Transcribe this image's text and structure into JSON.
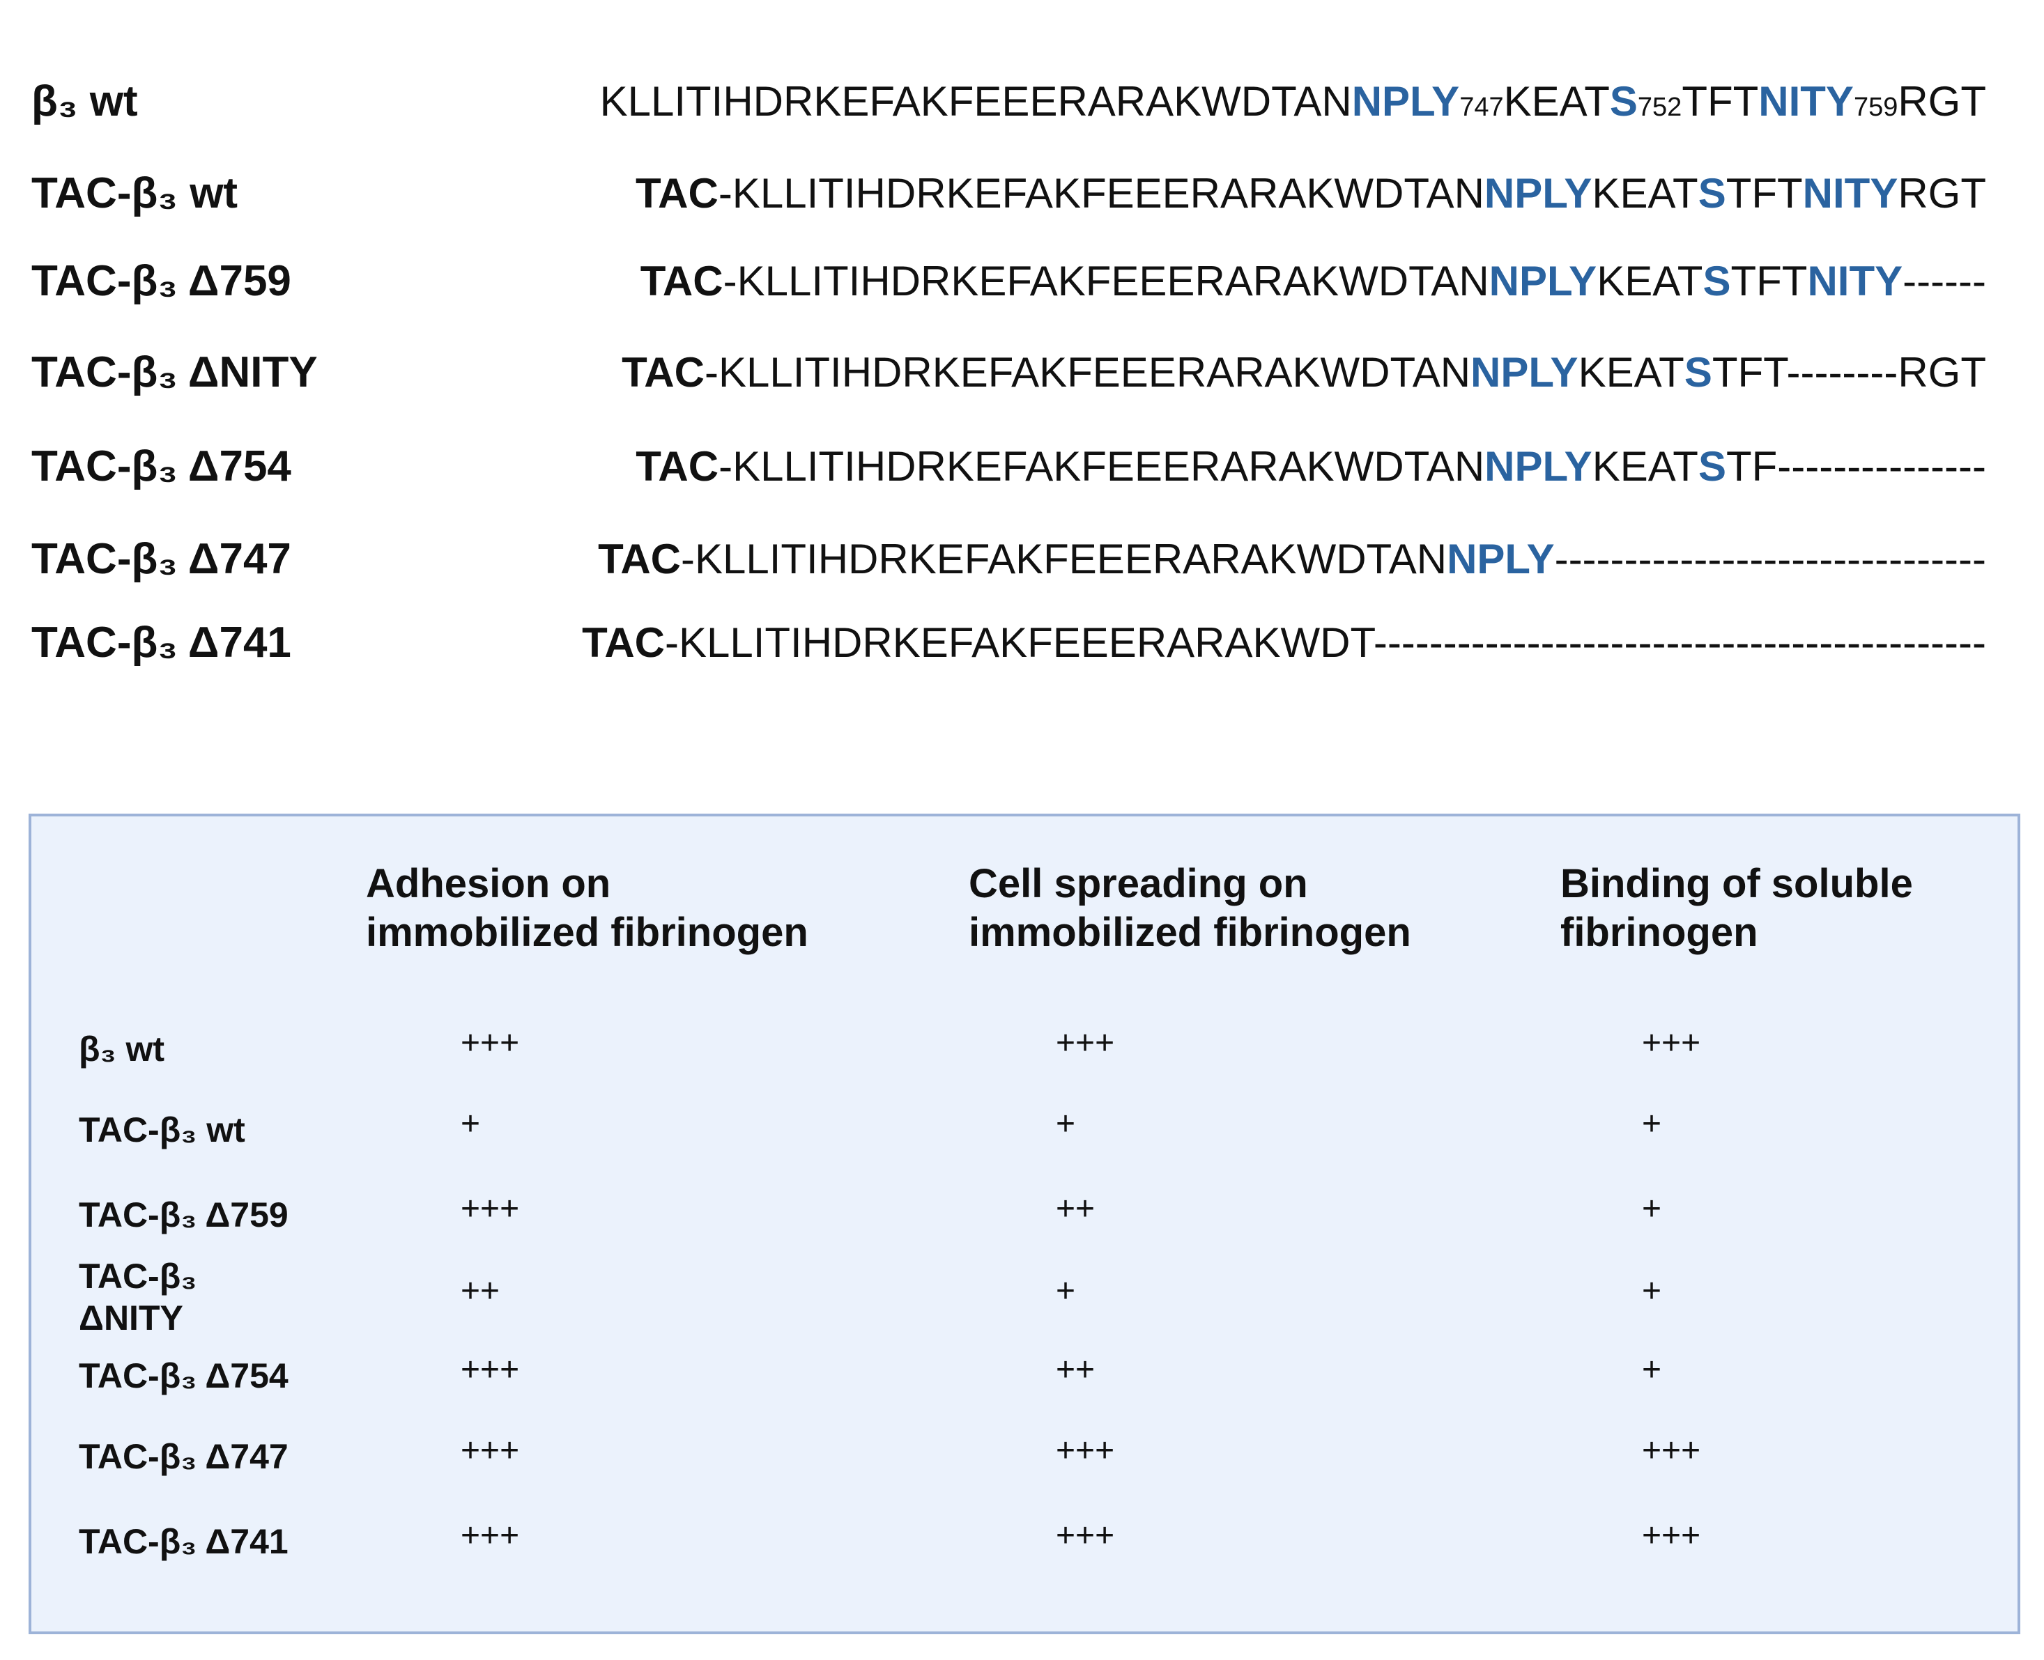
{
  "sequences": {
    "rows": [
      {
        "label": "β₃ wt",
        "segments": [
          {
            "text": "KLLITIHDRKEFAKFEEERARAKWDTAN",
            "style": "plain"
          },
          {
            "text": "NPLY",
            "style": "motif",
            "marker": "747"
          },
          {
            "text": "KEAT",
            "style": "plain"
          },
          {
            "text": "S",
            "style": "motif",
            "marker": "752"
          },
          {
            "text": "TFT",
            "style": "plain"
          },
          {
            "text": "NITY",
            "style": "motif",
            "marker": "759"
          },
          {
            "text": "RGT",
            "style": "plain"
          }
        ]
      },
      {
        "label": "TAC-β₃ wt",
        "segments": [
          {
            "text": "TAC",
            "style": "tag"
          },
          {
            "text": "-KLLITIHDRKEFAKFEEERARAKWDTAN",
            "style": "plain"
          },
          {
            "text": "NPLY",
            "style": "motif"
          },
          {
            "text": "KEAT",
            "style": "plain"
          },
          {
            "text": "S",
            "style": "motif"
          },
          {
            "text": "TFT",
            "style": "plain"
          },
          {
            "text": "NITY",
            "style": "motif"
          },
          {
            "text": "RGT",
            "style": "plain"
          }
        ]
      },
      {
        "label": "TAC-β₃ Δ759",
        "segments": [
          {
            "text": "TAC",
            "style": "tag"
          },
          {
            "text": "-KLLITIHDRKEFAKFEEERARAKWDTAN",
            "style": "plain"
          },
          {
            "text": "NPLY",
            "style": "motif"
          },
          {
            "text": "KEAT",
            "style": "plain"
          },
          {
            "text": "S",
            "style": "motif"
          },
          {
            "text": "TFT",
            "style": "plain"
          },
          {
            "text": "NITY",
            "style": "motif"
          },
          {
            "text": "------",
            "style": "plain"
          }
        ]
      },
      {
        "label": "TAC-β₃ ΔNITY",
        "segments": [
          {
            "text": "TAC",
            "style": "tag"
          },
          {
            "text": "-KLLITIHDRKEFAKFEEERARAKWDTAN",
            "style": "plain"
          },
          {
            "text": "NPLY",
            "style": "motif"
          },
          {
            "text": "KEAT",
            "style": "plain"
          },
          {
            "text": "S",
            "style": "motif"
          },
          {
            "text": "TFT--------RGT",
            "style": "plain"
          }
        ]
      },
      {
        "label": "TAC-β₃ Δ754",
        "segments": [
          {
            "text": "TAC",
            "style": "tag"
          },
          {
            "text": "-KLLITIHDRKEFAKFEEERARAKWDTAN",
            "style": "plain"
          },
          {
            "text": "NPLY",
            "style": "motif"
          },
          {
            "text": "KEAT",
            "style": "plain"
          },
          {
            "text": "S",
            "style": "motif"
          },
          {
            "text": "TF---------------",
            "style": "plain"
          }
        ]
      },
      {
        "label": "TAC-β₃ Δ747",
        "segments": [
          {
            "text": "TAC",
            "style": "tag"
          },
          {
            "text": "-KLLITIHDRKEFAKFEEERARAKWDTAN",
            "style": "plain"
          },
          {
            "text": "NPLY",
            "style": "motif"
          },
          {
            "text": "-------------------------------",
            "style": "plain"
          }
        ]
      },
      {
        "label": "TAC-β₃ Δ741",
        "segments": [
          {
            "text": "TAC",
            "style": "tag"
          },
          {
            "text": "-KLLITIHDRKEFAKFEEERARAKWDT--------------------------------------------",
            "style": "plain"
          }
        ]
      }
    ]
  },
  "table": {
    "headers": [
      [
        "Adhesion on",
        "immobilized fibrinogen"
      ],
      [
        "Cell spreading on",
        "immobilized fibrinogen"
      ],
      [
        "Binding of soluble",
        "fibrinogen"
      ]
    ],
    "rows": [
      {
        "label": [
          "β₃ wt"
        ],
        "values": [
          "+++",
          "+++",
          "+++"
        ]
      },
      {
        "label": [
          "TAC-β₃ wt"
        ],
        "values": [
          "+",
          "+",
          "+"
        ]
      },
      {
        "label": [
          "TAC-β₃ Δ759"
        ],
        "values": [
          "+++",
          "++",
          "+"
        ]
      },
      {
        "label": [
          "TAC-β₃",
          "ΔNITY"
        ],
        "values": [
          "++",
          "+",
          "+"
        ]
      },
      {
        "label": [
          "TAC-β₃ Δ754"
        ],
        "values": [
          "+++",
          "++",
          "+"
        ]
      },
      {
        "label": [
          "TAC-β₃ Δ747"
        ],
        "values": [
          "+++",
          "+++",
          "+++"
        ]
      },
      {
        "label": [
          "TAC-β₃ Δ741"
        ],
        "values": [
          "+++",
          "+++",
          "+++"
        ]
      }
    ]
  }
}
